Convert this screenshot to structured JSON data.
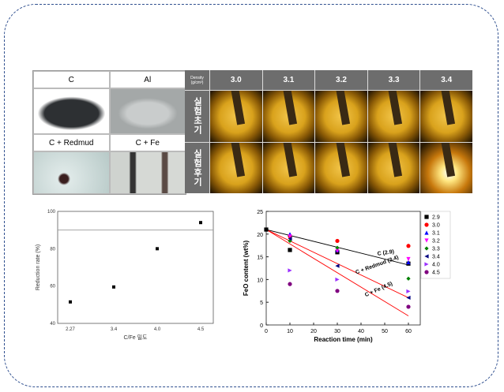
{
  "materials": {
    "cells": [
      {
        "label": "C"
      },
      {
        "label": "Al"
      },
      {
        "label": "C + Redmud"
      },
      {
        "label": "C + Fe"
      }
    ]
  },
  "furnace": {
    "density_label": "Density",
    "density_unit": "(g/cm³)",
    "columns": [
      "3.0",
      "3.1",
      "3.2",
      "3.3",
      "3.4"
    ],
    "rows": [
      "실험초기",
      "실험후기"
    ]
  },
  "chart_data": [
    {
      "type": "scatter",
      "title": "",
      "xlabel": "C/Fe 밀도",
      "ylabel": "Reduction rate (%)",
      "categories": [
        "2.27",
        "3.4",
        "4.0",
        "4.5"
      ],
      "values": [
        51.5,
        59.5,
        80,
        94
      ],
      "ylim": [
        40,
        100
      ],
      "yticks": [
        "40",
        "60",
        "80",
        "100"
      ],
      "reference_line": 90,
      "reference_color": "#f08080"
    },
    {
      "type": "scatter",
      "xlabel": "Reaction time (min)",
      "ylabel": "FeO content (wt%)",
      "xlim": [
        0,
        65
      ],
      "ylim": [
        0,
        25
      ],
      "xticks": [
        "0",
        "10",
        "20",
        "30",
        "40",
        "50",
        "60"
      ],
      "yticks": [
        "0",
        "5",
        "10",
        "15",
        "20",
        "25"
      ],
      "series": [
        {
          "name": "2.9",
          "color": "#000000",
          "marker": "square",
          "x": [
            0,
            10,
            30,
            60
          ],
          "y": [
            21,
            16.5,
            16,
            13.5
          ]
        },
        {
          "name": "3.0",
          "color": "#ff0000",
          "marker": "circle",
          "x": [
            10,
            30,
            60
          ],
          "y": [
            19.5,
            18.5,
            17.4
          ]
        },
        {
          "name": "3.1",
          "color": "#0000ff",
          "marker": "tri-up",
          "x": [
            10,
            30,
            60
          ],
          "y": [
            20,
            16.5,
            13.8
          ]
        },
        {
          "name": "3.2",
          "color": "#ff00ff",
          "marker": "tri-down",
          "x": [
            10,
            30,
            60
          ],
          "y": [
            19.5,
            16.3,
            14.5
          ]
        },
        {
          "name": "3.3",
          "color": "#008000",
          "marker": "diamond",
          "x": [
            10,
            30,
            60
          ],
          "y": [
            18.5,
            17,
            10.2
          ]
        },
        {
          "name": "3.4",
          "color": "#000080",
          "marker": "tri-left",
          "x": [
            10,
            30,
            60
          ],
          "y": [
            19,
            13,
            6
          ]
        },
        {
          "name": "4.0",
          "color": "#9b30ff",
          "marker": "tri-right",
          "x": [
            10,
            30,
            60
          ],
          "y": [
            12,
            10,
            7.4
          ]
        },
        {
          "name": "4.5",
          "color": "#800080",
          "marker": "circle",
          "x": [
            10,
            30,
            60
          ],
          "y": [
            9,
            7.5,
            4
          ]
        }
      ],
      "fit_lines": [
        {
          "label": "C  (2.9)",
          "color": "#000000",
          "x": [
            0,
            60
          ],
          "y": [
            21,
            13.2
          ]
        },
        {
          "label": "C + Redmud  (3.4)",
          "color": "#ff0000",
          "x": [
            0,
            60
          ],
          "y": [
            21,
            6
          ]
        },
        {
          "label": "C + Fe  (4.5)",
          "color": "#ff0000",
          "x": [
            0,
            60
          ],
          "y": [
            21,
            2
          ]
        }
      ]
    }
  ]
}
